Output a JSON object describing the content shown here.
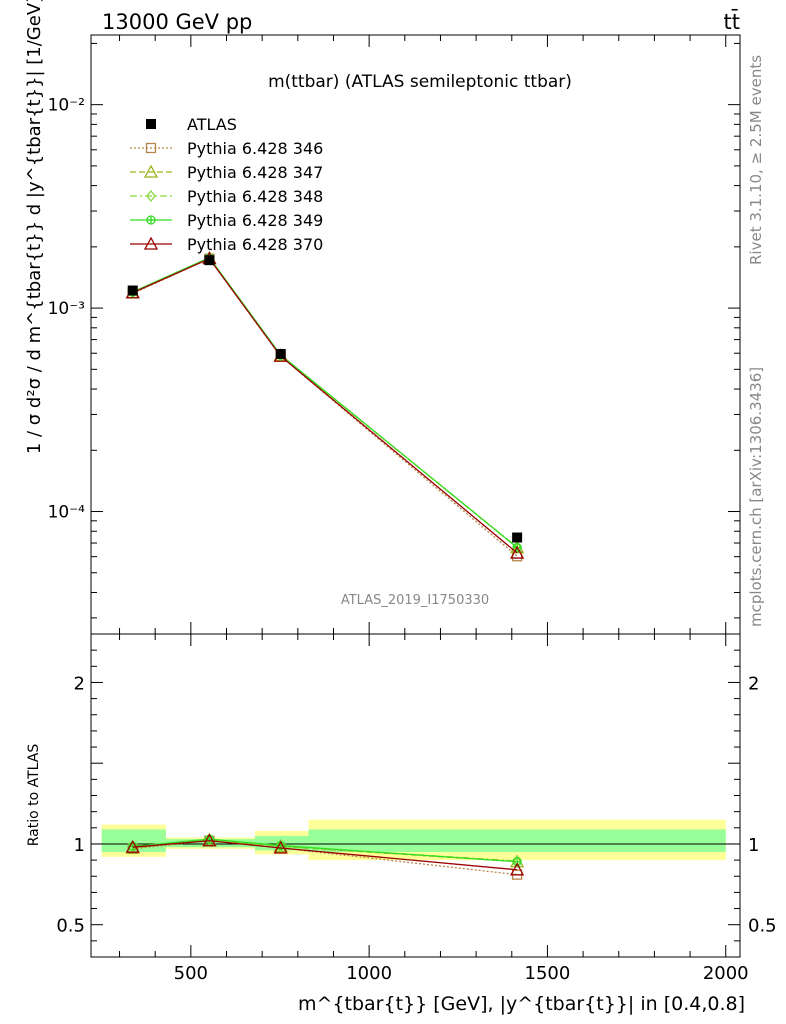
{
  "header": {
    "left": "13000 GeV pp",
    "right": "tt̄"
  },
  "side_labels": {
    "rivet": "Rivet 3.1.10, ≥ 2.5M events",
    "mcplots": "mcplots.cern.ch [arXiv:1306.3436]"
  },
  "chart_data": [
    {
      "type": "line",
      "panel": "main",
      "title": "m(ttbar) (ATLAS semileptonic ttbar)",
      "watermark": "ATLAS_2019_I1750330",
      "ylabel": "1 / σ d²σ / d m^{tbar{t}} d |y^{tbar{t}}| [1/GeV]",
      "yscale": "log",
      "ylim": [
        2.5e-05,
        0.022
      ],
      "xlim": [
        220,
        2040
      ],
      "y_ticks": [
        {
          "value": 0.01,
          "label": "10⁻²"
        },
        {
          "value": 0.001,
          "label": "10⁻³"
        },
        {
          "value": 0.0001,
          "label": "10⁻⁴"
        }
      ],
      "x": [
        337,
        552,
        752,
        1415
      ],
      "series": [
        {
          "name": "ATLAS",
          "color": "#000000",
          "marker": "square-filled",
          "values": [
            0.00122,
            0.00172,
            0.000595,
            7.45e-05
          ]
        },
        {
          "name": "Pythia 6.428 346",
          "color": "#b8864b",
          "marker": "square-open",
          "dash": "2,2",
          "values": [
            0.00118,
            0.00175,
            0.00058,
            6.03e-05
          ]
        },
        {
          "name": "Pythia 6.428 347",
          "color": "#99b31a",
          "marker": "triangle-open",
          "dash": "6,3",
          "values": [
            0.00119,
            0.00176,
            0.000585,
            6.65e-05
          ]
        },
        {
          "name": "Pythia 6.428 348",
          "color": "#8ad940",
          "marker": "diamond-open",
          "dash": "7,3,2,3",
          "values": [
            0.00119,
            0.00176,
            0.000586,
            6.68e-05
          ]
        },
        {
          "name": "Pythia 6.428 349",
          "color": "#33dd22",
          "marker": "cross-circle",
          "dash": "",
          "values": [
            0.0012,
            0.00177,
            0.000588,
            6.65e-05
          ]
        },
        {
          "name": "Pythia 6.428 370",
          "color": "#990000",
          "marker": "triangle-open",
          "dash": "",
          "values": [
            0.00119,
            0.00175,
            0.00058,
            6.25e-05
          ]
        }
      ],
      "legend": "top-left"
    },
    {
      "type": "line",
      "panel": "ratio",
      "ylabel": "Ratio to ATLAS",
      "xlabel": "m^{tbar{t}} [GeV], |y^{tbar{t}}| in [0.4,0.8]",
      "ylim": [
        0.3,
        2.3
      ],
      "xlim": [
        220,
        2040
      ],
      "y_ticks": [
        {
          "value": 0.5,
          "label": "0.5"
        },
        {
          "value": 1,
          "label": "1"
        },
        {
          "value": 2,
          "label": "2"
        }
      ],
      "x_ticks": [
        {
          "value": 500,
          "label": "500"
        },
        {
          "value": 1000,
          "label": "1000"
        },
        {
          "value": 1500,
          "label": "1500"
        },
        {
          "value": 2000,
          "label": "2000"
        }
      ],
      "bands": [
        {
          "x0": 250,
          "x1": 430,
          "yellow": [
            0.92,
            1.12
          ],
          "green": [
            0.95,
            1.09
          ]
        },
        {
          "x0": 430,
          "x1": 680,
          "yellow": [
            0.97,
            1.04
          ],
          "green": [
            0.98,
            1.03
          ]
        },
        {
          "x0": 680,
          "x1": 830,
          "yellow": [
            0.935,
            1.08
          ],
          "green": [
            0.96,
            1.05
          ]
        },
        {
          "x0": 830,
          "x1": 2000,
          "yellow": [
            0.9,
            1.15
          ],
          "green": [
            0.95,
            1.09
          ]
        }
      ],
      "x": [
        337,
        552,
        752,
        1415
      ],
      "series": [
        {
          "name": "Pythia 6.428 346",
          "values": [
            0.97,
            1.02,
            0.975,
            0.81
          ]
        },
        {
          "name": "Pythia 6.428 347",
          "values": [
            0.975,
            1.025,
            0.985,
            0.89
          ]
        },
        {
          "name": "Pythia 6.428 348",
          "values": [
            0.98,
            1.025,
            0.985,
            0.895
          ]
        },
        {
          "name": "Pythia 6.428 349",
          "values": [
            0.985,
            1.03,
            0.99,
            0.89
          ]
        },
        {
          "name": "Pythia 6.428 370",
          "values": [
            0.98,
            1.02,
            0.975,
            0.84
          ]
        }
      ]
    }
  ]
}
